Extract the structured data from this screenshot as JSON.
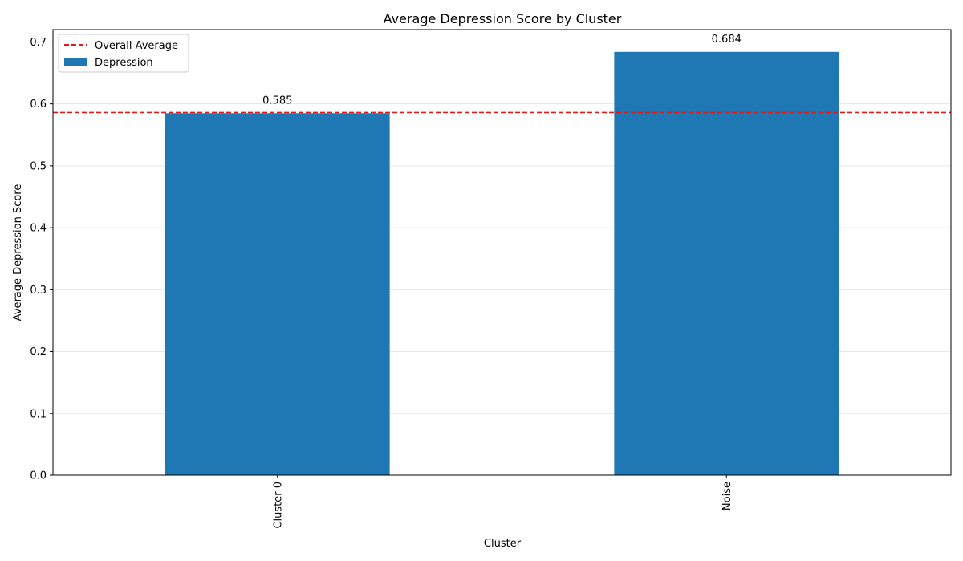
{
  "chart_data": {
    "type": "bar",
    "title": "Average Depression Score by Cluster",
    "xlabel": "Cluster",
    "ylabel": "Average Depression Score",
    "categories": [
      "Cluster 0",
      "Noise"
    ],
    "series": [
      {
        "name": "Depression",
        "values": [
          0.585,
          0.684
        ],
        "color": "#1f77b4"
      }
    ],
    "data_labels": [
      "0.585",
      "0.684"
    ],
    "reference_line": {
      "name": "Overall Average",
      "value": 0.586,
      "color": "#e31a1c",
      "style": "dashed"
    },
    "ylim": [
      0,
      0.72
    ],
    "yticks": [
      0.0,
      0.1,
      0.2,
      0.3,
      0.4,
      0.5,
      0.6,
      0.7
    ],
    "ytick_labels": [
      "0.0",
      "0.1",
      "0.2",
      "0.3",
      "0.4",
      "0.5",
      "0.6",
      "0.7"
    ],
    "grid": "y-axis, light",
    "legend_position": "top-left",
    "xtick_rotation": "vertical"
  }
}
